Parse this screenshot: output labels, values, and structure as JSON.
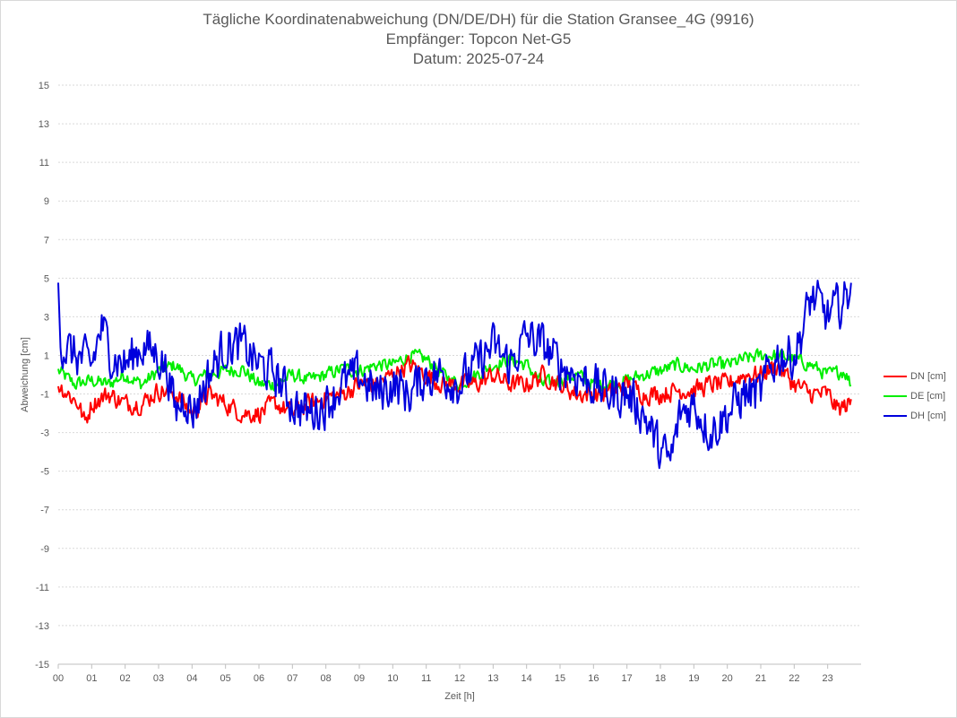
{
  "chart_data": {
    "type": "line",
    "title": "Tägliche Koordinatenabweichung (DN/DE/DH) für die Station Gransee_4G (9916)",
    "subtitle": "Empfänger: Topcon Net-G5",
    "subtitle2": "Datum: 2025-07-24",
    "xlabel": "Zeit [h]",
    "ylabel": "Abweichung [cm]",
    "xlim": [
      0,
      24
    ],
    "ylim": [
      -15,
      15
    ],
    "x_ticks": [
      "00",
      "01",
      "02",
      "03",
      "04",
      "05",
      "06",
      "07",
      "08",
      "09",
      "10",
      "11",
      "12",
      "13",
      "14",
      "15",
      "16",
      "17",
      "18",
      "19",
      "20",
      "21",
      "22",
      "23"
    ],
    "y_ticks": [
      15,
      13,
      11,
      9,
      7,
      5,
      3,
      1,
      -1,
      -3,
      -5,
      -7,
      -9,
      -11,
      -13,
      -15
    ],
    "grid": true,
    "legend_position": "right",
    "series": [
      {
        "name": "DN [cm]",
        "color": "#ff0000",
        "anchors": [
          [
            0,
            -0.5
          ],
          [
            0.3,
            -1
          ],
          [
            0.6,
            -1.5
          ],
          [
            0.8,
            -2.5
          ],
          [
            1,
            -1.5
          ],
          [
            1.5,
            -1
          ],
          [
            2,
            -1.5
          ],
          [
            2.5,
            -1.5
          ],
          [
            3,
            -0.8
          ],
          [
            3.5,
            -1
          ],
          [
            4,
            -2
          ],
          [
            4.5,
            -1
          ],
          [
            5,
            -1.5
          ],
          [
            5.5,
            -2
          ],
          [
            6,
            -2
          ],
          [
            6.5,
            -1.5
          ],
          [
            7,
            -2
          ],
          [
            7.5,
            -1.5
          ],
          [
            8,
            -1.2
          ],
          [
            8.5,
            -1
          ],
          [
            9,
            -0.5
          ],
          [
            9.5,
            -0.5
          ],
          [
            10,
            0
          ],
          [
            10.5,
            0.5
          ],
          [
            11,
            0
          ],
          [
            11.5,
            -0.5
          ],
          [
            12,
            -0.5
          ],
          [
            12.5,
            -0.5
          ],
          [
            13,
            0
          ],
          [
            13.5,
            -0.5
          ],
          [
            14,
            -0.5
          ],
          [
            14.5,
            0
          ],
          [
            15,
            -0.5
          ],
          [
            15.5,
            -1
          ],
          [
            16,
            -1
          ],
          [
            16.5,
            -1
          ],
          [
            17,
            -0.5
          ],
          [
            17.5,
            -1
          ],
          [
            18,
            -1
          ],
          [
            18.5,
            -0.8
          ],
          [
            19,
            -0.8
          ],
          [
            19.5,
            -0.5
          ],
          [
            20,
            -0.5
          ],
          [
            20.5,
            0
          ],
          [
            21,
            0
          ],
          [
            21.5,
            0.5
          ],
          [
            22,
            -0.5
          ],
          [
            22.5,
            -1
          ],
          [
            23,
            -1
          ],
          [
            23.3,
            -1.8
          ],
          [
            23.7,
            -1.5
          ]
        ],
        "amplitude": 0.7
      },
      {
        "name": "DE [cm]",
        "color": "#00ee00",
        "anchors": [
          [
            0,
            0.2
          ],
          [
            0.5,
            -0.5
          ],
          [
            1,
            -0.3
          ],
          [
            1.5,
            -0.5
          ],
          [
            2,
            0
          ],
          [
            2.5,
            -0.5
          ],
          [
            3,
            0.2
          ],
          [
            3.5,
            0.5
          ],
          [
            4,
            -0.3
          ],
          [
            4.5,
            0
          ],
          [
            5,
            0.2
          ],
          [
            5.5,
            0.3
          ],
          [
            6,
            -0.5
          ],
          [
            6.5,
            -0.5
          ],
          [
            7,
            0
          ],
          [
            7.5,
            -0.3
          ],
          [
            8,
            0
          ],
          [
            8.5,
            0.3
          ],
          [
            9,
            0.2
          ],
          [
            9.5,
            0.5
          ],
          [
            10,
            0.5
          ],
          [
            10.5,
            1
          ],
          [
            11,
            0.8
          ],
          [
            11.5,
            0
          ],
          [
            12,
            -0.5
          ],
          [
            12.5,
            0
          ],
          [
            13,
            0.5
          ],
          [
            13.5,
            0.8
          ],
          [
            14,
            0.5
          ],
          [
            14.5,
            -0.5
          ],
          [
            15,
            -0.3
          ],
          [
            15.5,
            0
          ],
          [
            16,
            -0.5
          ],
          [
            16.5,
            -0.5
          ],
          [
            17,
            -0.3
          ],
          [
            17.5,
            0
          ],
          [
            18,
            0.2
          ],
          [
            18.5,
            0.5
          ],
          [
            19,
            0.3
          ],
          [
            19.5,
            0.5
          ],
          [
            20,
            0.5
          ],
          [
            20.5,
            0.8
          ],
          [
            21,
            1
          ],
          [
            21.5,
            1
          ],
          [
            22,
            0.8
          ],
          [
            22.5,
            0.5
          ],
          [
            23,
            0
          ],
          [
            23.5,
            0.2
          ],
          [
            23.7,
            -0.5
          ]
        ],
        "amplitude": 0.5
      },
      {
        "name": "DH [cm]",
        "color": "#0000dd",
        "anchors": [
          [
            0,
            4.8
          ],
          [
            0.1,
            1.5
          ],
          [
            0.5,
            1
          ],
          [
            1,
            0.5
          ],
          [
            1.3,
            2.5
          ],
          [
            1.6,
            1
          ],
          [
            2,
            0.5
          ],
          [
            2.5,
            1.5
          ],
          [
            3,
            1
          ],
          [
            3.3,
            0
          ],
          [
            3.5,
            -2
          ],
          [
            3.8,
            -1
          ],
          [
            4,
            -2
          ],
          [
            4.5,
            0
          ],
          [
            5,
            1.5
          ],
          [
            5.5,
            1.5
          ],
          [
            6,
            0.5
          ],
          [
            6.5,
            0
          ],
          [
            7,
            -1.5
          ],
          [
            7.5,
            -2
          ],
          [
            8,
            -1.5
          ],
          [
            8.5,
            -0.5
          ],
          [
            9,
            0
          ],
          [
            9.5,
            -1
          ],
          [
            10,
            -0.5
          ],
          [
            10.5,
            -1
          ],
          [
            11,
            0
          ],
          [
            11.5,
            0
          ],
          [
            12,
            -0.5
          ],
          [
            12.5,
            0.5
          ],
          [
            13,
            1.5
          ],
          [
            13.5,
            0.5
          ],
          [
            14,
            2
          ],
          [
            14.5,
            1.5
          ],
          [
            15,
            0.5
          ],
          [
            15.5,
            0
          ],
          [
            16,
            -0.5
          ],
          [
            16.5,
            -1
          ],
          [
            17,
            -1
          ],
          [
            17.5,
            -2
          ],
          [
            18,
            -4
          ],
          [
            18.3,
            -4.5
          ],
          [
            18.6,
            -2
          ],
          [
            19,
            -1.5
          ],
          [
            19.5,
            -3
          ],
          [
            20,
            -2
          ],
          [
            20.5,
            -1
          ],
          [
            21,
            -1
          ],
          [
            21.2,
            0
          ],
          [
            21.5,
            1
          ],
          [
            22,
            1
          ],
          [
            22.2,
            2
          ],
          [
            22.5,
            4
          ],
          [
            22.8,
            3.5
          ],
          [
            23,
            3
          ],
          [
            23.3,
            3.5
          ],
          [
            23.6,
            4
          ],
          [
            23.7,
            5.5
          ]
        ],
        "amplitude": 1.6
      }
    ]
  }
}
